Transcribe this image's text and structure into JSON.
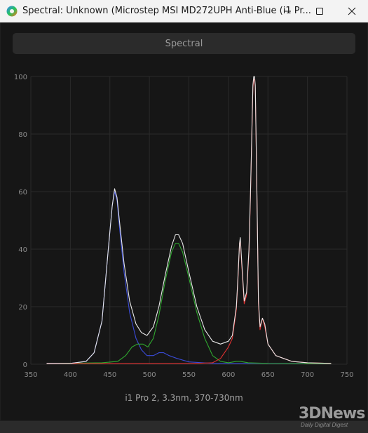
{
  "window": {
    "title": "Spectral: Unknown (Microstep MSI MD272UPH Anti-Blue (i1 Pr...",
    "minimize_icon": "minimize-icon",
    "maximize_icon": "maximize-icon",
    "close_icon": "close-icon"
  },
  "tab": {
    "label": "Spectral"
  },
  "caption": "i1 Pro 2, 3.3nm, 370-730nm",
  "watermark": {
    "brand": "3DNews",
    "tagline": "Daily Digital Digest"
  },
  "colors": {
    "total": "#e8e8e8",
    "blue": "#3a4bd8",
    "green": "#2fa82f",
    "red": "#e03030",
    "grid": "#2a2a2a",
    "axis_text": "#8a8a8a"
  },
  "chart_data": {
    "type": "line",
    "title": "",
    "xlabel": "",
    "ylabel": "",
    "xlim": [
      350,
      750
    ],
    "ylim": [
      0,
      100
    ],
    "x_ticks": [
      350,
      400,
      450,
      500,
      550,
      600,
      650,
      700,
      750
    ],
    "y_ticks": [
      0,
      20,
      40,
      60,
      80,
      100
    ],
    "grid": true,
    "series": [
      {
        "color": "#e8e8e8",
        "points": [
          [
            370,
            0.3
          ],
          [
            400,
            0.3
          ],
          [
            420,
            1
          ],
          [
            430,
            4
          ],
          [
            440,
            15
          ],
          [
            448,
            40
          ],
          [
            453,
            55
          ],
          [
            456,
            61
          ],
          [
            459,
            58
          ],
          [
            462,
            50
          ],
          [
            468,
            35
          ],
          [
            475,
            22
          ],
          [
            483,
            14
          ],
          [
            490,
            11
          ],
          [
            497,
            10
          ],
          [
            505,
            13
          ],
          [
            512,
            20
          ],
          [
            520,
            31
          ],
          [
            528,
            41
          ],
          [
            533,
            45
          ],
          [
            537,
            45
          ],
          [
            542,
            42
          ],
          [
            550,
            32
          ],
          [
            560,
            20
          ],
          [
            570,
            12
          ],
          [
            580,
            8
          ],
          [
            590,
            7
          ],
          [
            600,
            8
          ],
          [
            605,
            10
          ],
          [
            610,
            20
          ],
          [
            612,
            30
          ],
          [
            614,
            42
          ],
          [
            615,
            44
          ],
          [
            617,
            35
          ],
          [
            620,
            22
          ],
          [
            623,
            25
          ],
          [
            626,
            40
          ],
          [
            628,
            60
          ],
          [
            630,
            85
          ],
          [
            631,
            97
          ],
          [
            632,
            100
          ],
          [
            633,
            100
          ],
          [
            634,
            97
          ],
          [
            636,
            60
          ],
          [
            638,
            22
          ],
          [
            640,
            13
          ],
          [
            643,
            16
          ],
          [
            646,
            14
          ],
          [
            650,
            7
          ],
          [
            660,
            3
          ],
          [
            670,
            2
          ],
          [
            680,
            1
          ],
          [
            700,
            0.5
          ],
          [
            730,
            0.3
          ]
        ]
      },
      {
        "color": "#3a4bd8",
        "points": [
          [
            370,
            0.3
          ],
          [
            400,
            0.3
          ],
          [
            420,
            1
          ],
          [
            430,
            4
          ],
          [
            440,
            15
          ],
          [
            448,
            40
          ],
          [
            453,
            55
          ],
          [
            456,
            60
          ],
          [
            459,
            57
          ],
          [
            462,
            48
          ],
          [
            468,
            32
          ],
          [
            475,
            18
          ],
          [
            483,
            9
          ],
          [
            490,
            5
          ],
          [
            497,
            3
          ],
          [
            505,
            3
          ],
          [
            512,
            4
          ],
          [
            518,
            4
          ],
          [
            525,
            3
          ],
          [
            535,
            2
          ],
          [
            550,
            0.8
          ],
          [
            580,
            0.3
          ],
          [
            620,
            0.3
          ],
          [
            730,
            0.3
          ]
        ]
      },
      {
        "color": "#2fa82f",
        "points": [
          [
            370,
            0.2
          ],
          [
            440,
            0.5
          ],
          [
            460,
            1
          ],
          [
            470,
            3
          ],
          [
            478,
            6
          ],
          [
            485,
            7
          ],
          [
            492,
            7
          ],
          [
            498,
            6
          ],
          [
            505,
            9
          ],
          [
            512,
            17
          ],
          [
            520,
            29
          ],
          [
            528,
            39
          ],
          [
            533,
            42
          ],
          [
            537,
            42
          ],
          [
            542,
            39
          ],
          [
            550,
            30
          ],
          [
            560,
            18
          ],
          [
            570,
            9
          ],
          [
            580,
            3
          ],
          [
            590,
            1
          ],
          [
            600,
            0.5
          ],
          [
            610,
            1
          ],
          [
            615,
            1
          ],
          [
            625,
            0.5
          ],
          [
            650,
            0.3
          ],
          [
            730,
            0.2
          ]
        ]
      },
      {
        "color": "#e03030",
        "points": [
          [
            370,
            0.2
          ],
          [
            560,
            0.3
          ],
          [
            580,
            0.5
          ],
          [
            590,
            2
          ],
          [
            600,
            6
          ],
          [
            605,
            9
          ],
          [
            610,
            19
          ],
          [
            612,
            29
          ],
          [
            614,
            42
          ],
          [
            615,
            43
          ],
          [
            617,
            34
          ],
          [
            620,
            21
          ],
          [
            623,
            24
          ],
          [
            626,
            39
          ],
          [
            628,
            59
          ],
          [
            630,
            84
          ],
          [
            631,
            96
          ],
          [
            632,
            99
          ],
          [
            633,
            99
          ],
          [
            634,
            96
          ],
          [
            636,
            59
          ],
          [
            638,
            21
          ],
          [
            640,
            12
          ],
          [
            643,
            16
          ],
          [
            646,
            13
          ],
          [
            650,
            7
          ],
          [
            660,
            3
          ],
          [
            670,
            2
          ],
          [
            680,
            1
          ],
          [
            700,
            0.5
          ],
          [
            730,
            0.3
          ]
        ]
      }
    ]
  }
}
